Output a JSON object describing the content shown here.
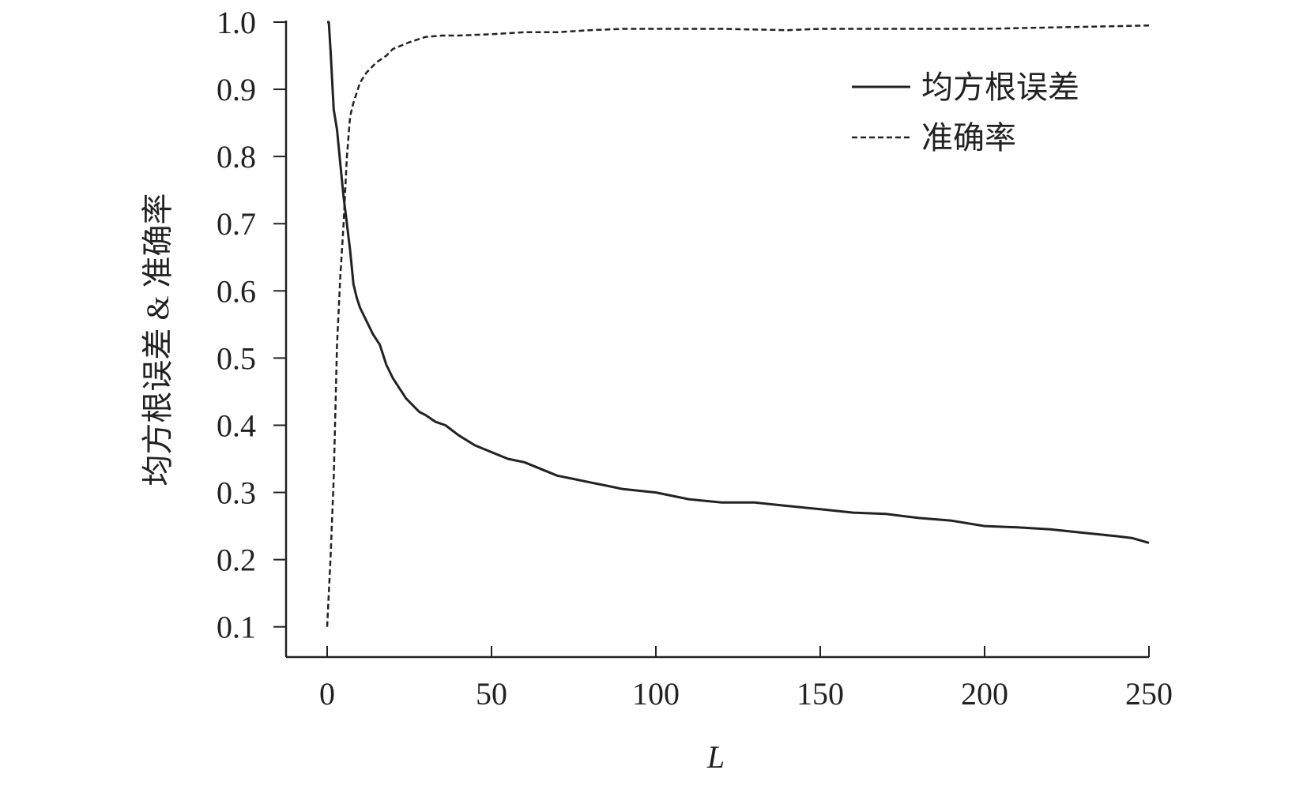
{
  "chart_data": {
    "type": "line",
    "title": "",
    "xlabel": "L",
    "ylabel": "均方根误差 & 准确率",
    "xlim": [
      -12.5,
      250
    ],
    "ylim": [
      0.055,
      1.0
    ],
    "xticks": [
      0,
      50,
      100,
      150,
      200,
      250
    ],
    "xtick_labels": [
      "0",
      "50",
      "100",
      "150",
      "200",
      "250"
    ],
    "yticks": [
      0.1,
      0.2,
      0.3,
      0.4,
      0.5,
      0.6,
      0.7,
      0.8,
      0.9,
      1.0
    ],
    "ytick_labels": [
      "0.1",
      "0.2",
      "0.3",
      "0.4",
      "0.5",
      "0.6",
      "0.7",
      "0.8",
      "0.9",
      "1.0"
    ],
    "grid": false,
    "legend_position": "top-right",
    "series": [
      {
        "name": "均方根误差",
        "style": "solid",
        "color": "#222222",
        "x": [
          0,
          0.5,
          1,
          2,
          3,
          4,
          5,
          6,
          7,
          8,
          9,
          10,
          12,
          14,
          16,
          18,
          20,
          22,
          24,
          26,
          28,
          30,
          33,
          36,
          40,
          45,
          50,
          55,
          60,
          65,
          70,
          75,
          80,
          85,
          90,
          100,
          110,
          120,
          130,
          140,
          150,
          160,
          170,
          180,
          190,
          200,
          210,
          220,
          230,
          240,
          245,
          250
        ],
        "values": [
          1.0,
          1.0,
          0.96,
          0.87,
          0.84,
          0.79,
          0.74,
          0.7,
          0.66,
          0.61,
          0.59,
          0.575,
          0.555,
          0.535,
          0.52,
          0.49,
          0.47,
          0.455,
          0.44,
          0.43,
          0.42,
          0.415,
          0.405,
          0.4,
          0.385,
          0.37,
          0.36,
          0.35,
          0.345,
          0.335,
          0.325,
          0.32,
          0.315,
          0.31,
          0.305,
          0.3,
          0.29,
          0.285,
          0.285,
          0.28,
          0.275,
          0.27,
          0.268,
          0.262,
          0.258,
          0.25,
          0.248,
          0.245,
          0.24,
          0.235,
          0.232,
          0.225
        ]
      },
      {
        "name": "准确率",
        "style": "dashed",
        "color": "#222222",
        "x": [
          0,
          1,
          2,
          3,
          4,
          5,
          6,
          7,
          8,
          10,
          12,
          15,
          18,
          20,
          25,
          30,
          35,
          40,
          50,
          60,
          70,
          80,
          90,
          100,
          120,
          140,
          150,
          170,
          200,
          220,
          250
        ],
        "values": [
          0.1,
          0.2,
          0.32,
          0.52,
          0.62,
          0.7,
          0.8,
          0.86,
          0.88,
          0.91,
          0.925,
          0.94,
          0.95,
          0.96,
          0.97,
          0.978,
          0.98,
          0.98,
          0.982,
          0.985,
          0.985,
          0.988,
          0.99,
          0.99,
          0.99,
          0.988,
          0.99,
          0.99,
          0.99,
          0.992,
          0.995
        ]
      }
    ]
  }
}
